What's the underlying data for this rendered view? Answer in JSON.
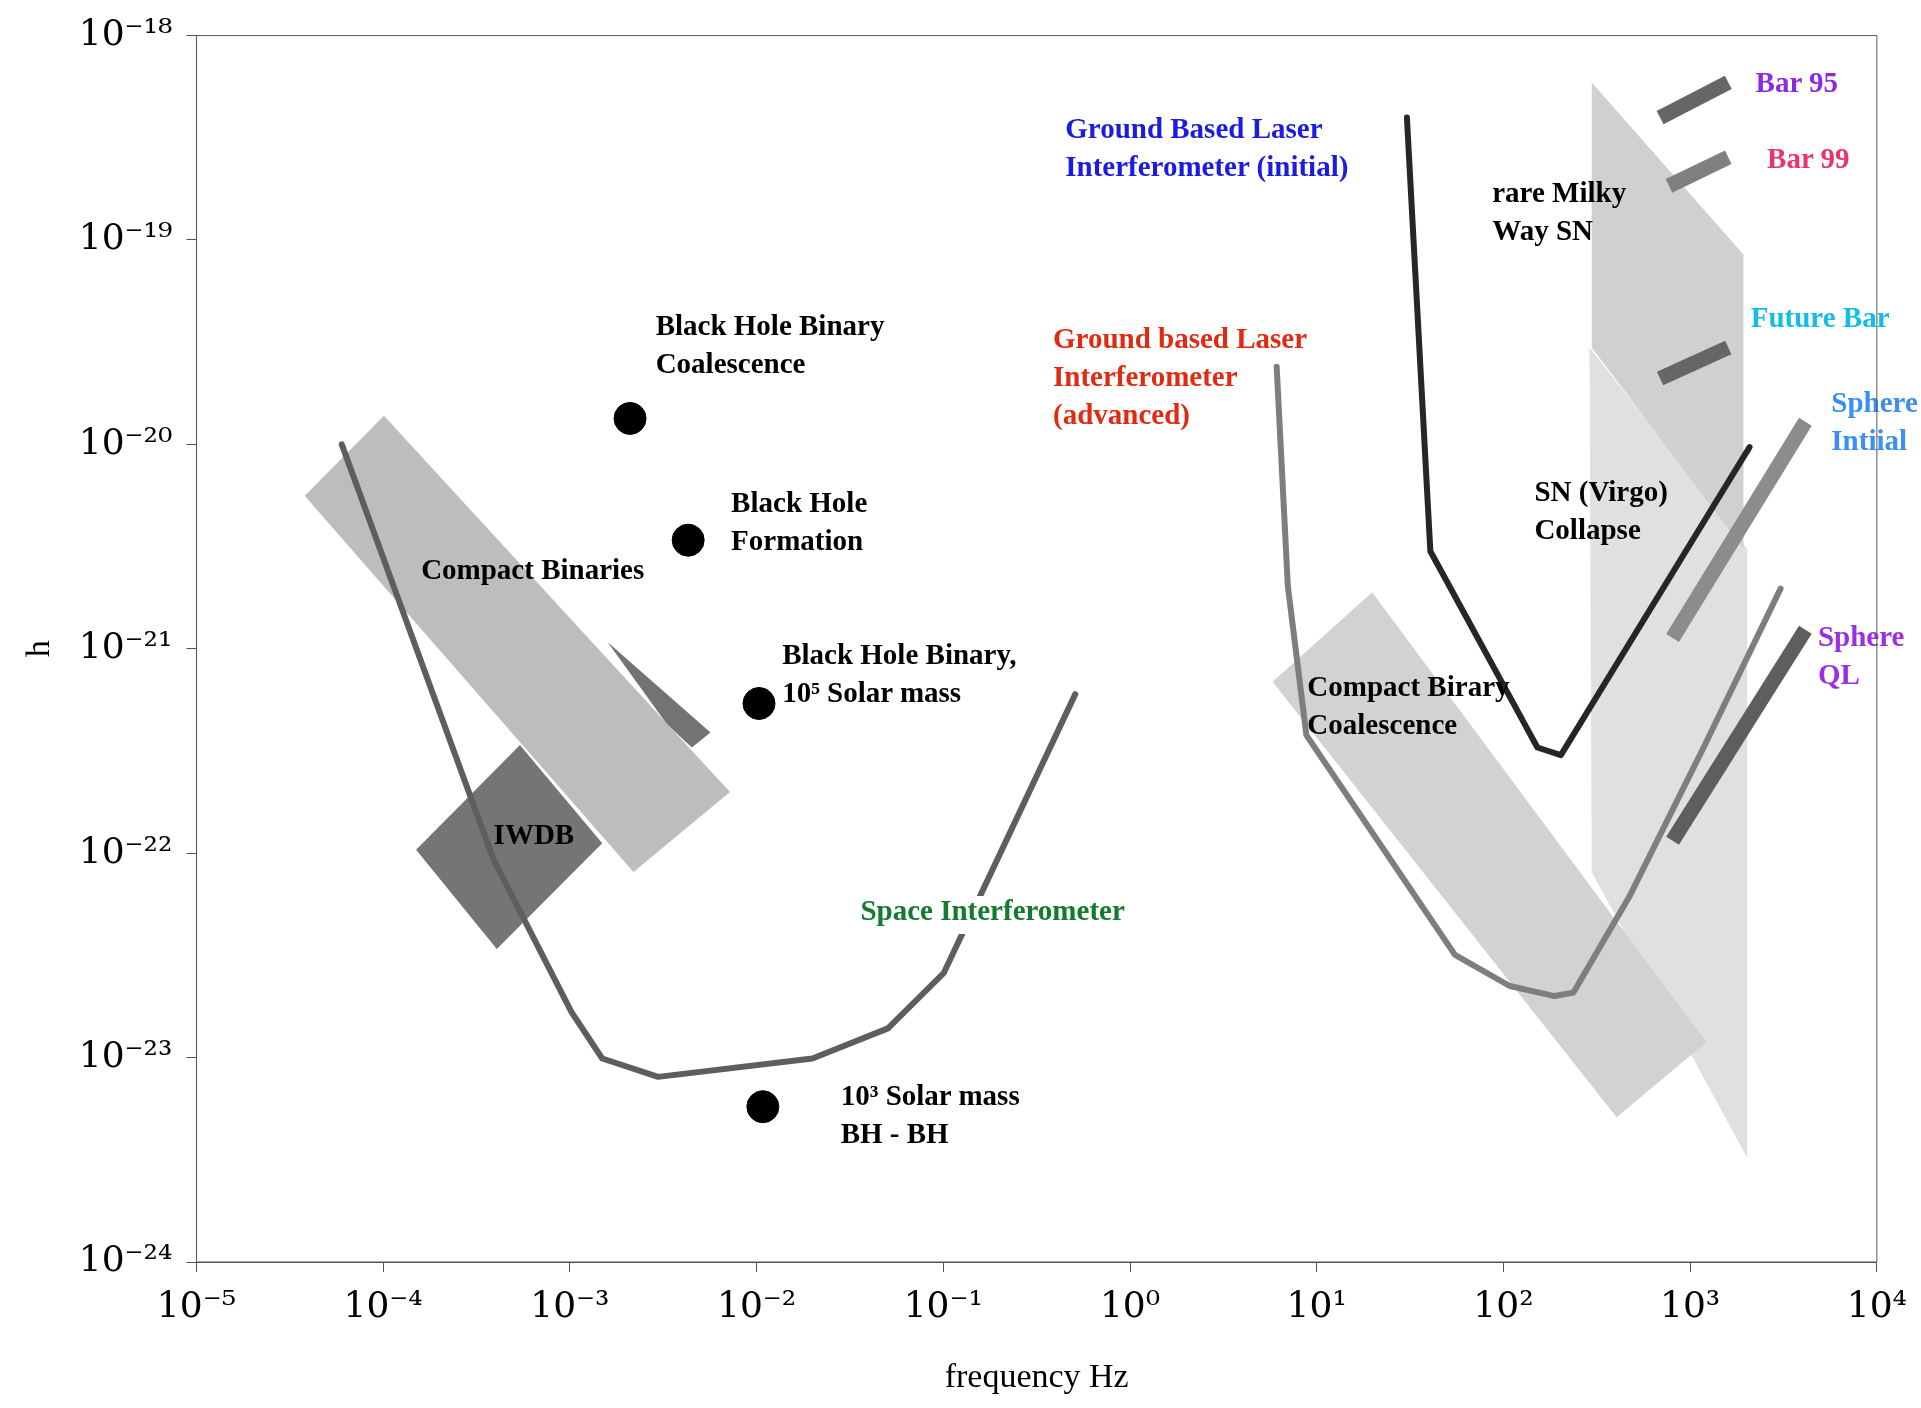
{
  "chart_data": {
    "type": "line",
    "xlabel": "frequency Hz",
    "ylabel": "h",
    "log": "xy",
    "grid": false,
    "legend": false,
    "xlim": [
      1e-05,
      10000.0
    ],
    "ylim": [
      1e-24,
      1e-18
    ],
    "xticks": [
      {
        "value": 1e-05,
        "label": "10⁻⁵"
      },
      {
        "value": 0.0001,
        "label": "10⁻⁴"
      },
      {
        "value": 0.001,
        "label": "10⁻³"
      },
      {
        "value": 0.01,
        "label": "10⁻²"
      },
      {
        "value": 0.1,
        "label": "10⁻¹"
      },
      {
        "value": 1,
        "label": "10⁰"
      },
      {
        "value": 10,
        "label": "10¹"
      },
      {
        "value": 100,
        "label": "10²"
      },
      {
        "value": 1000,
        "label": "10³"
      },
      {
        "value": 10000,
        "label": "10⁴"
      }
    ],
    "yticks": [
      {
        "value": 1e-24,
        "label": "10⁻²⁴"
      },
      {
        "value": 1e-23,
        "label": "10⁻²³"
      },
      {
        "value": 1e-22,
        "label": "10⁻²²"
      },
      {
        "value": 1e-21,
        "label": "10⁻²¹"
      },
      {
        "value": 1e-20,
        "label": "10⁻²⁰"
      },
      {
        "value": 1e-19,
        "label": "10⁻¹⁹"
      },
      {
        "value": 1e-18,
        "label": "10⁻¹⁸"
      }
    ],
    "series": [
      {
        "type": "area",
        "color": "#e0e0e0",
        "x": [
          289,
          2020,
          2020,
          297,
          289
        ],
        "values": [
          2.98e-20,
          3.08e-21,
          3.24e-24,
          8.1e-23,
          2.98e-20
        ]
      },
      {
        "type": "area",
        "color": "#d0d0d0",
        "x": [
          297,
          1930,
          1930,
          297,
          297
        ],
        "values": [
          5.9e-19,
          8.5e-20,
          3.08e-21,
          2.98e-20,
          5.9e-19
        ]
      },
      {
        "type": "area",
        "color": "#d2d2d2",
        "x": [
          5.8,
          19.8,
          1220,
          404,
          5.8
        ],
        "values": [
          6.9e-22,
          1.89e-21,
          1.19e-23,
          5.1e-24,
          6.9e-22
        ]
      },
      {
        "type": "area",
        "color": "#737373",
        "x": [
          0.00159,
          0.00566,
          0.0045,
          0.00331,
          0.00159
        ],
        "values": [
          1.08e-21,
          3.89e-22,
          3.29e-22,
          4.28e-22,
          1.08e-21
        ]
      },
      {
        "type": "area",
        "color": "#757575",
        "x": [
          0.00015,
          0.00054,
          0.00149,
          0.000406,
          0.00015
        ],
        "values": [
          1.04e-22,
          3.38e-22,
          1.12e-22,
          3.4e-23,
          1.04e-22
        ]
      },
      {
        "type": "area",
        "color": "#bdbdbd",
        "x": [
          3.8e-05,
          0.000101,
          0.0072,
          0.00219,
          3.8e-05
        ],
        "values": [
          5.6e-21,
          1.38e-20,
          1.99e-22,
          8.1e-23,
          5.6e-21
        ]
      },
      {
        "type": "line",
        "color": "#5e5e5e",
        "x": [
          6e-05,
          0.00039,
          0.00102,
          0.00149,
          0.00297,
          0.0199,
          0.0505,
          0.1007,
          0.509
        ],
        "values": [
          1e-20,
          9.3e-23,
          1.67e-23,
          9.9e-24,
          8.05e-24,
          9.9e-24,
          1.39e-23,
          2.6e-23,
          6e-22
        ]
      },
      {
        "type": "line",
        "color": "#7e7e7e",
        "x": [
          6.1,
          7.0,
          8.8,
          55,
          108,
          188,
          237,
          471,
          1180,
          3050
        ],
        "values": [
          2.4e-20,
          2.03e-21,
          3.78e-22,
          3.18e-23,
          2.24e-23,
          2e-23,
          2.08e-23,
          6.1e-23,
          3.29e-22,
          1.97e-21
        ]
      },
      {
        "type": "line",
        "color": "#262626",
        "x": [
          30.4,
          40.6,
          152,
          203,
          2080
        ],
        "values": [
          3.97e-19,
          3e-21,
          3.29e-22,
          3.02e-22,
          9.7e-21
        ]
      },
      {
        "type": "line",
        "color": "#666666",
        "x": [
          690,
          1600
        ],
        "values": [
          3.97e-19,
          5.9e-19
        ]
      },
      {
        "type": "line",
        "color": "#808080",
        "x": [
          770,
          1600
        ],
        "values": [
          1.84e-19,
          2.54e-19
        ]
      },
      {
        "type": "line",
        "color": "#666666",
        "x": [
          690,
          1600
        ],
        "values": [
          2.1e-20,
          2.98e-20
        ]
      },
      {
        "type": "line",
        "color": "#8c8c8c",
        "x": [
          805,
          4140
        ],
        "values": [
          1.13e-21,
          1.29e-20
        ]
      },
      {
        "type": "line",
        "color": "#5e5e5e",
        "x": [
          805,
          4140
        ],
        "values": [
          1.15e-22,
          1.24e-21
        ]
      },
      {
        "type": "scatter",
        "color": "#000000",
        "x": [
          0.0021,
          0.0043,
          0.0103,
          0.0108
        ],
        "values": [
          1.34e-20,
          3.4e-21,
          5.4e-22,
          5.75e-24
        ]
      }
    ],
    "annotations": [
      {
        "text": "Black Hole Binary\nCoalescence",
        "x": 0.0021,
        "y": 1.34e-20
      },
      {
        "text": "Black Hole\nFormation",
        "x": 0.0043,
        "y": 3.4e-21
      },
      "Compact Binaries",
      {
        "text": "Black Hole Binary,\n10⁵ Solar mass",
        "x": 0.0103,
        "y": 5.4e-22
      },
      {
        "text": "IWDB",
        "x": 0.00054,
        "y": 3.38e-22
      },
      {
        "text": "Space Interferometer",
        "x": 0.1007,
        "y": 2.6e-23
      },
      {
        "text": "10³ Solar mass\nBH - BH",
        "x": 0.0108,
        "y": 5.75e-24
      },
      {
        "text": "Ground Based Laser\nInterferometer (initial)",
        "x": 30.4,
        "y": 3.97e-19
      },
      {
        "text": "Ground based Laser\nInterferometer\n(advanced)",
        "x": 6.1,
        "y": 2.4e-20
      },
      "rare Milky\nWay SN",
      "SN (Virgo)\nCollapse",
      {
        "text": "Compact Birary\nCoalescence",
        "x": 19.8,
        "y": 1.89e-21
      },
      {
        "text": "Bar 95",
        "x": 1600,
        "y": 5.9e-19
      },
      {
        "text": "Bar 99",
        "x": 1600,
        "y": 2.54e-19
      },
      {
        "text": "Future Bar",
        "x": 1600,
        "y": 2.98e-20
      },
      {
        "text": "Sphere\nIntiial",
        "x": 4140,
        "y": 1.29e-20
      },
      {
        "text": "Sphere\nQL",
        "x": 4140,
        "y": 1.24e-21
      }
    ]
  }
}
